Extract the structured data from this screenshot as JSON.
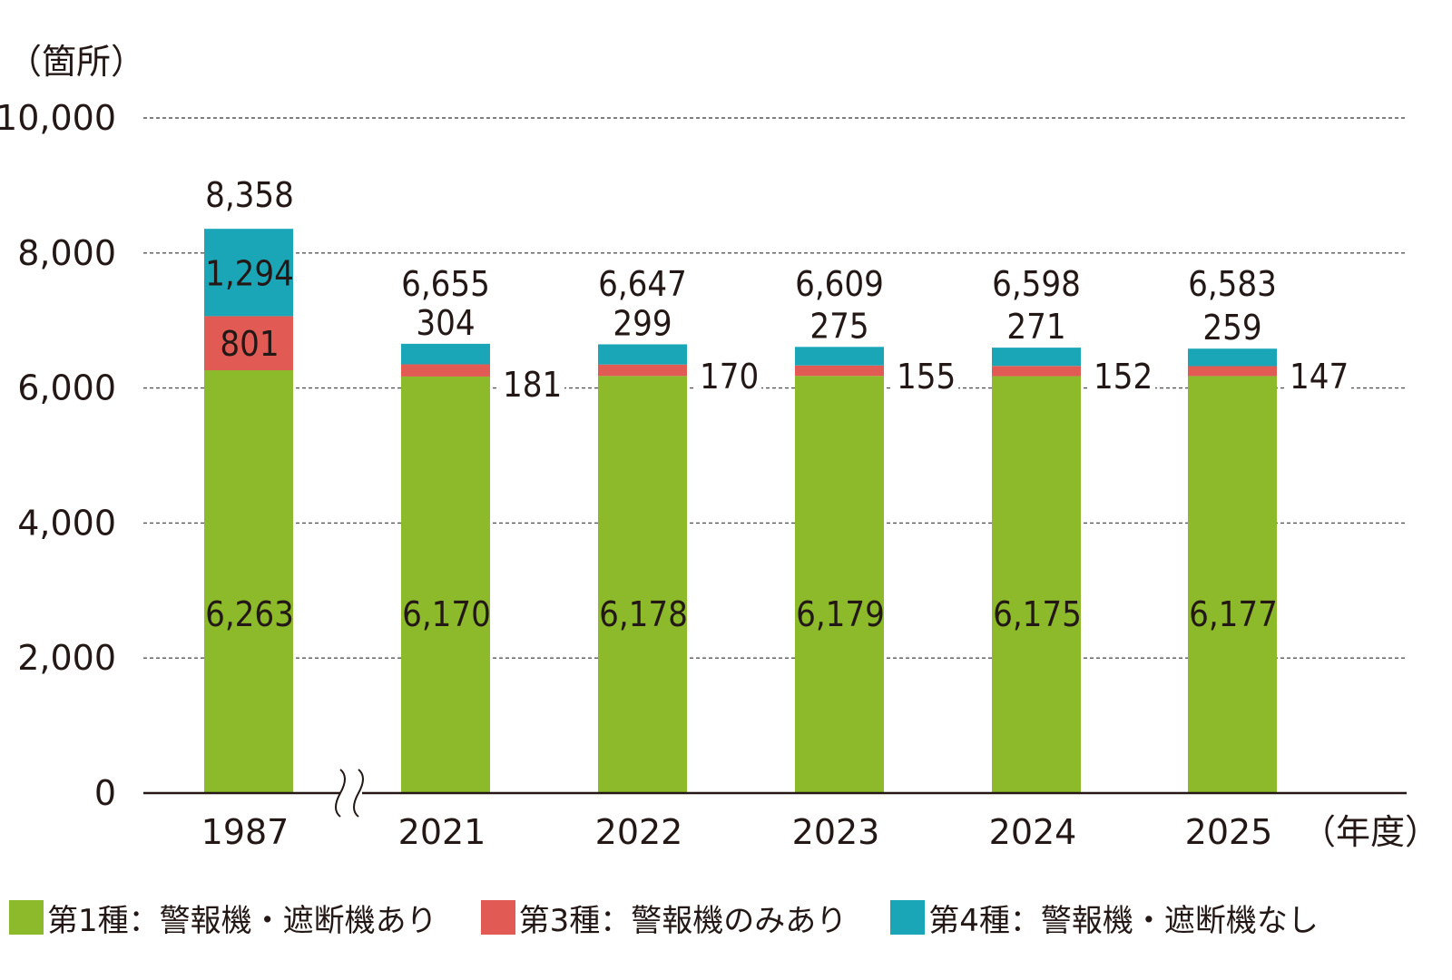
{
  "chart_data": {
    "type": "bar",
    "stacked": true,
    "unit_label": "（箇所）",
    "x_unit_label": "（年度）",
    "categories": [
      "1987",
      "2021",
      "2022",
      "2023",
      "2024",
      "2025"
    ],
    "series": [
      {
        "name": "第1種：警報機・遮断機あり",
        "color": "#8cba2b",
        "values": [
          6263,
          6170,
          6178,
          6179,
          6175,
          6177
        ],
        "labels": [
          "6,263",
          "6,170",
          "6,178",
          "6,179",
          "6,175",
          "6,177"
        ]
      },
      {
        "name": "第3種：警報機のみあり",
        "color": "#e15b54",
        "values": [
          801,
          181,
          170,
          155,
          152,
          147
        ],
        "labels": [
          "801",
          "181",
          "170",
          "155",
          "152",
          "147"
        ]
      },
      {
        "name": "第4種：警報機・遮断機なし",
        "color": "#1aa6b7",
        "values": [
          1294,
          304,
          299,
          275,
          271,
          259
        ],
        "labels": [
          "1,294",
          "304",
          "299",
          "275",
          "271",
          "259"
        ]
      }
    ],
    "totals": [
      8358,
      6655,
      6647,
      6609,
      6598,
      6583
    ],
    "total_labels": [
      "8,358",
      "6,655",
      "6,647",
      "6,609",
      "6,598",
      "6,583"
    ],
    "yticks": [
      "0",
      "2,000",
      "4,000",
      "6,000",
      "8,000",
      "10,000"
    ],
    "ylim": [
      0,
      10000
    ],
    "grid": true,
    "axis_break_after_category": "1987",
    "legend_position": "bottom"
  }
}
